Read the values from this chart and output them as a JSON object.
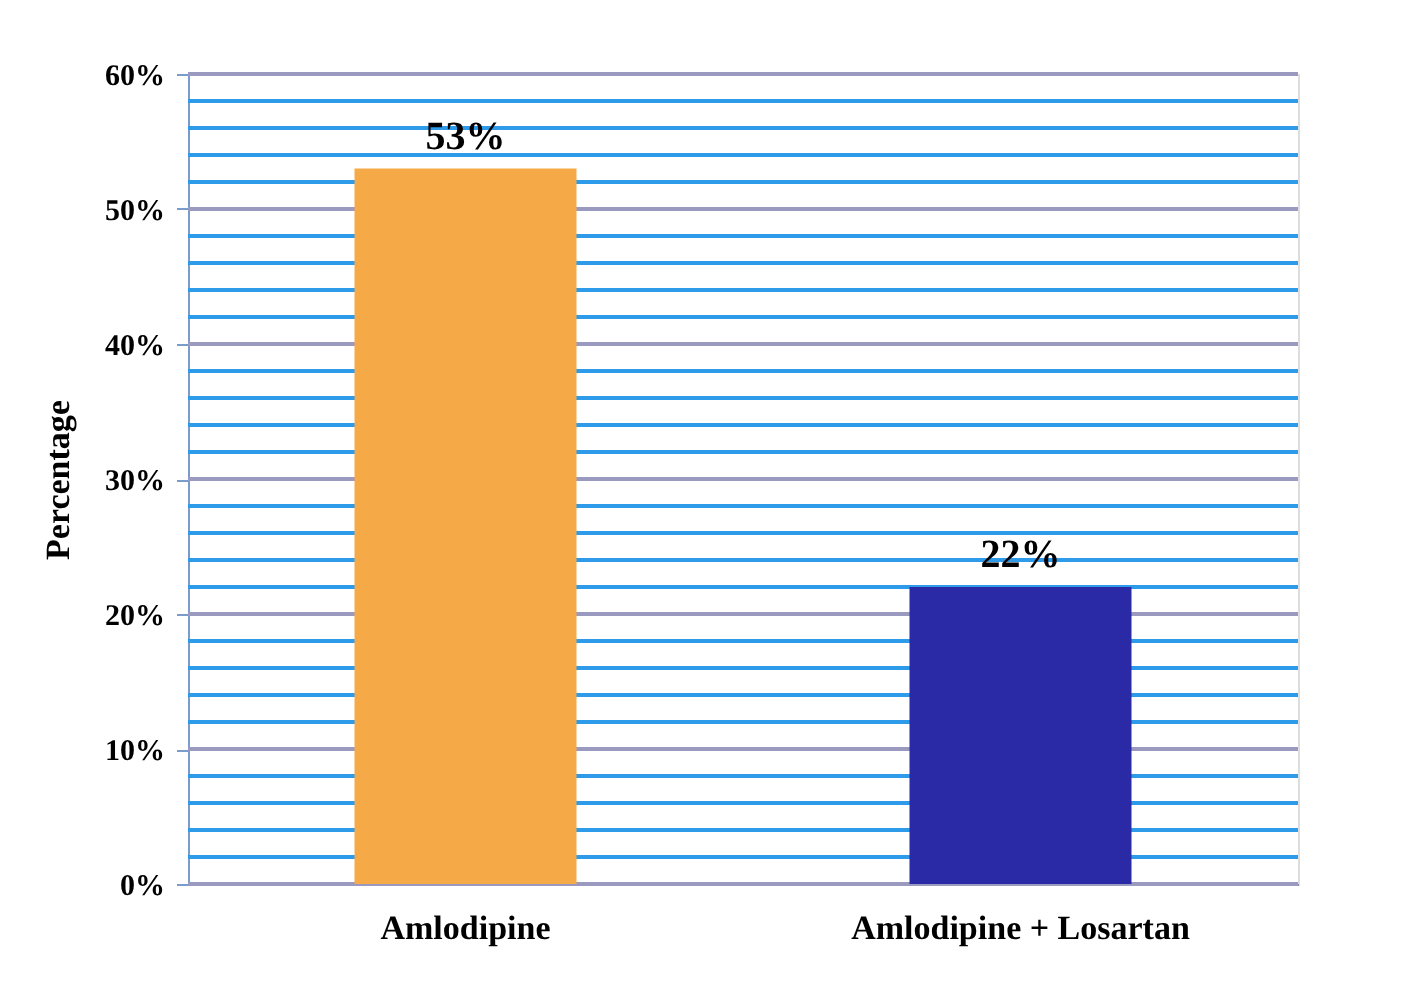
{
  "chart_data": {
    "type": "bar",
    "ylabel": "Percentage",
    "categories": [
      "Amlodipine",
      "Amlodipine + Losartan"
    ],
    "values": [
      53,
      22
    ],
    "colors": [
      "#f5a947",
      "#2a2aa6"
    ],
    "value_labels": [
      "53%",
      "22%"
    ],
    "ylim": [
      0,
      60
    ],
    "yticks": [
      {
        "value": 0,
        "label": "0%"
      },
      {
        "value": 2,
        "label": null
      },
      {
        "value": 4,
        "label": null
      },
      {
        "value": 6,
        "label": null
      },
      {
        "value": 8,
        "label": null
      },
      {
        "value": 10,
        "label": "10%"
      },
      {
        "value": 12,
        "label": null
      },
      {
        "value": 14,
        "label": null
      },
      {
        "value": 16,
        "label": null
      },
      {
        "value": 18,
        "label": null
      },
      {
        "value": 20,
        "label": "20%"
      },
      {
        "value": 22,
        "label": null
      },
      {
        "value": 24,
        "label": null
      },
      {
        "value": 26,
        "label": null
      },
      {
        "value": 28,
        "label": null
      },
      {
        "value": 30,
        "label": "30%"
      },
      {
        "value": 32,
        "label": null
      },
      {
        "value": 34,
        "label": null
      },
      {
        "value": 36,
        "label": null
      },
      {
        "value": 38,
        "label": null
      },
      {
        "value": 40,
        "label": "40%"
      },
      {
        "value": 42,
        "label": null
      },
      {
        "value": 44,
        "label": null
      },
      {
        "value": 46,
        "label": null
      },
      {
        "value": 48,
        "label": null
      },
      {
        "value": 50,
        "label": "50%"
      },
      {
        "value": 52,
        "label": null
      },
      {
        "value": 54,
        "label": null
      },
      {
        "value": 56,
        "label": null
      },
      {
        "value": 58,
        "label": null
      },
      {
        "value": 60,
        "label": "60%"
      }
    ],
    "grid": "y"
  }
}
